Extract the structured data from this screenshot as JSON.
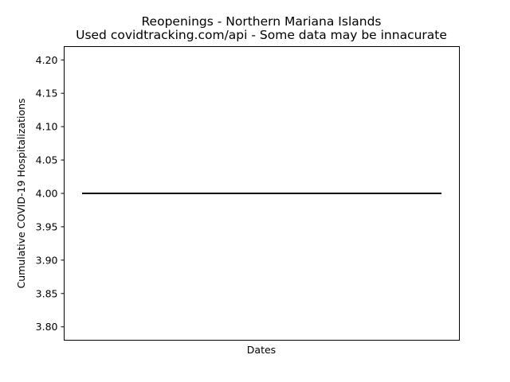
{
  "chart_data": {
    "type": "line",
    "title": "Reopenings - Northern Mariana Islands",
    "subtitle": "Used covidtracking.com/api - Some data may be innacurate",
    "xlabel": "Dates",
    "ylabel": "Cumulative COVID-19 Hospitalizations",
    "ylim": [
      3.78,
      4.22
    ],
    "yticks": [
      "3.80",
      "3.85",
      "3.90",
      "3.95",
      "4.00",
      "4.05",
      "4.10",
      "4.15",
      "4.20"
    ],
    "xticks": [],
    "grid": false,
    "series": [
      {
        "color": "#000000",
        "x": [
          0,
          1
        ],
        "y": [
          4.0,
          4.0
        ]
      }
    ]
  }
}
